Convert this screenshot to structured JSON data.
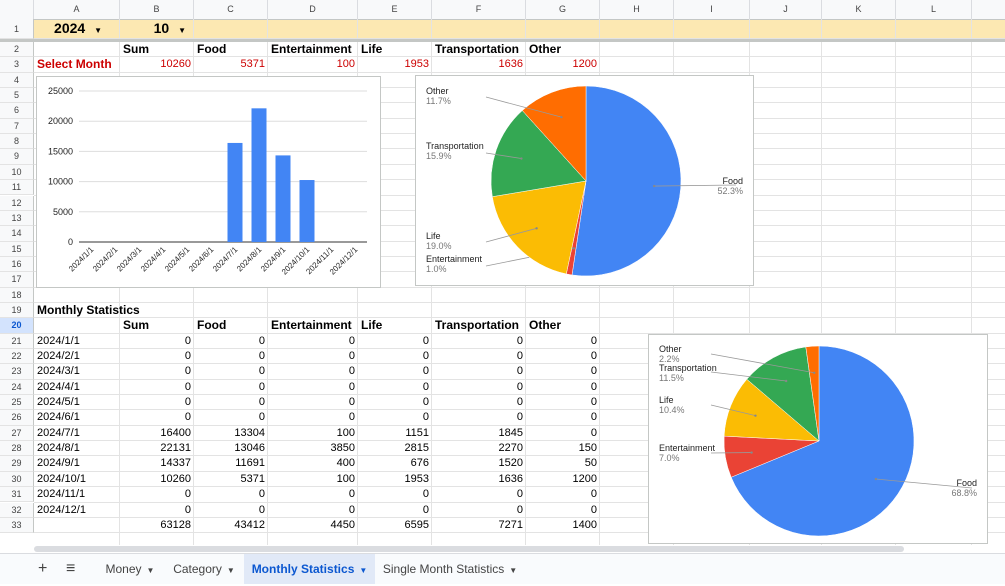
{
  "columns": [
    "A",
    "B",
    "C",
    "D",
    "E",
    "F",
    "G",
    "H",
    "I",
    "J",
    "K",
    "L"
  ],
  "rows": [
    "1",
    "2",
    "3",
    "4",
    "5",
    "6",
    "7",
    "8",
    "9",
    "10",
    "11",
    "12",
    "13",
    "14",
    "15",
    "16",
    "17",
    "18",
    "19",
    "20",
    "21",
    "22",
    "23",
    "24",
    "25",
    "26",
    "27",
    "28",
    "29",
    "30",
    "31",
    "32",
    "33"
  ],
  "selector": {
    "year": "2024",
    "month": "10"
  },
  "headers": [
    "Sum",
    "Food",
    "Entertainment",
    "Life",
    "Transportation",
    "Other"
  ],
  "select_month": {
    "label": "Select Month",
    "values": [
      "10260",
      "5371",
      "100",
      "1953",
      "1636",
      "1200"
    ]
  },
  "monthly": {
    "title": "Monthly Statistics",
    "rows": [
      {
        "month": "2024/1/1",
        "values": [
          "0",
          "0",
          "0",
          "0",
          "0",
          "0"
        ]
      },
      {
        "month": "2024/2/1",
        "values": [
          "0",
          "0",
          "0",
          "0",
          "0",
          "0"
        ]
      },
      {
        "month": "2024/3/1",
        "values": [
          "0",
          "0",
          "0",
          "0",
          "0",
          "0"
        ]
      },
      {
        "month": "2024/4/1",
        "values": [
          "0",
          "0",
          "0",
          "0",
          "0",
          "0"
        ]
      },
      {
        "month": "2024/5/1",
        "values": [
          "0",
          "0",
          "0",
          "0",
          "0",
          "0"
        ]
      },
      {
        "month": "2024/6/1",
        "values": [
          "0",
          "0",
          "0",
          "0",
          "0",
          "0"
        ]
      },
      {
        "month": "2024/7/1",
        "values": [
          "16400",
          "13304",
          "100",
          "1151",
          "1845",
          "0"
        ]
      },
      {
        "month": "2024/8/1",
        "values": [
          "22131",
          "13046",
          "3850",
          "2815",
          "2270",
          "150"
        ]
      },
      {
        "month": "2024/9/1",
        "values": [
          "14337",
          "11691",
          "400",
          "676",
          "1520",
          "50"
        ]
      },
      {
        "month": "2024/10/1",
        "values": [
          "10260",
          "5371",
          "100",
          "1953",
          "1636",
          "1200"
        ]
      },
      {
        "month": "2024/11/1",
        "values": [
          "0",
          "0",
          "0",
          "0",
          "0",
          "0"
        ]
      },
      {
        "month": "2024/12/1",
        "values": [
          "0",
          "0",
          "0",
          "0",
          "0",
          "0"
        ]
      }
    ],
    "totals": [
      "63128",
      "43412",
      "4450",
      "6595",
      "7271",
      "1400"
    ]
  },
  "chart_data": [
    {
      "type": "bar",
      "categories": [
        "2024/1/1",
        "2024/2/1",
        "2024/3/1",
        "2024/4/1",
        "2024/5/1",
        "2024/6/1",
        "2024/7/1",
        "2024/8/1",
        "2024/9/1",
        "2024/10/1",
        "2024/11/1",
        "2024/12/1"
      ],
      "values": [
        0,
        0,
        0,
        0,
        0,
        0,
        16400,
        22131,
        14337,
        10260,
        0,
        0
      ],
      "ylim": [
        0,
        25000
      ],
      "yticks": [
        "0",
        "5000",
        "10000",
        "15000",
        "20000",
        "25000"
      ],
      "color": "#4285f4"
    },
    {
      "type": "pie",
      "slices": [
        {
          "name": "Food",
          "pct": "52.3%",
          "value": 5371,
          "color": "#4285f4"
        },
        {
          "name": "Entertainment",
          "pct": "1.0%",
          "value": 100,
          "color": "#ea4335"
        },
        {
          "name": "Life",
          "pct": "19.0%",
          "value": 1953,
          "color": "#fbbc04"
        },
        {
          "name": "Transportation",
          "pct": "15.9%",
          "value": 1636,
          "color": "#34a853"
        },
        {
          "name": "Other",
          "pct": "11.7%",
          "value": 1200,
          "color": "#ff6d01"
        }
      ]
    },
    {
      "type": "pie",
      "slices": [
        {
          "name": "Food",
          "pct": "68.8%",
          "value": 43412,
          "color": "#4285f4"
        },
        {
          "name": "Entertainment",
          "pct": "7.0%",
          "value": 4450,
          "color": "#ea4335"
        },
        {
          "name": "Life",
          "pct": "10.4%",
          "value": 6595,
          "color": "#fbbc04"
        },
        {
          "name": "Transportation",
          "pct": "11.5%",
          "value": 7271,
          "color": "#34a853"
        },
        {
          "name": "Other",
          "pct": "2.2%",
          "value": 1400,
          "color": "#ff6d01"
        }
      ]
    }
  ],
  "tabs": {
    "add": "+",
    "menu": "≡",
    "items": [
      {
        "label": "Money",
        "active": false
      },
      {
        "label": "Category",
        "active": false
      },
      {
        "label": "Monthly Statistics",
        "active": true
      },
      {
        "label": "Single Month Statistics",
        "active": false
      }
    ],
    "caret": "▼"
  }
}
